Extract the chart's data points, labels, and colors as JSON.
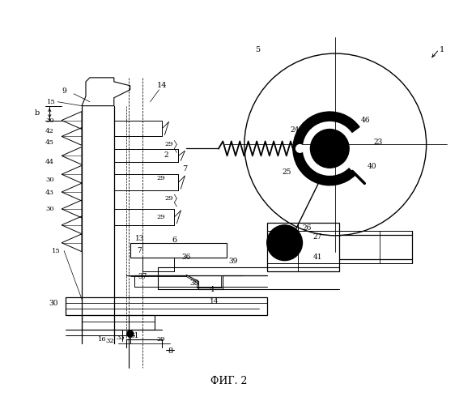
{
  "title": "ФИГ. 2",
  "bg_color": "#ffffff",
  "line_color": "#000000",
  "fig_width": 5.67,
  "fig_height": 5.0,
  "dpi": 100
}
